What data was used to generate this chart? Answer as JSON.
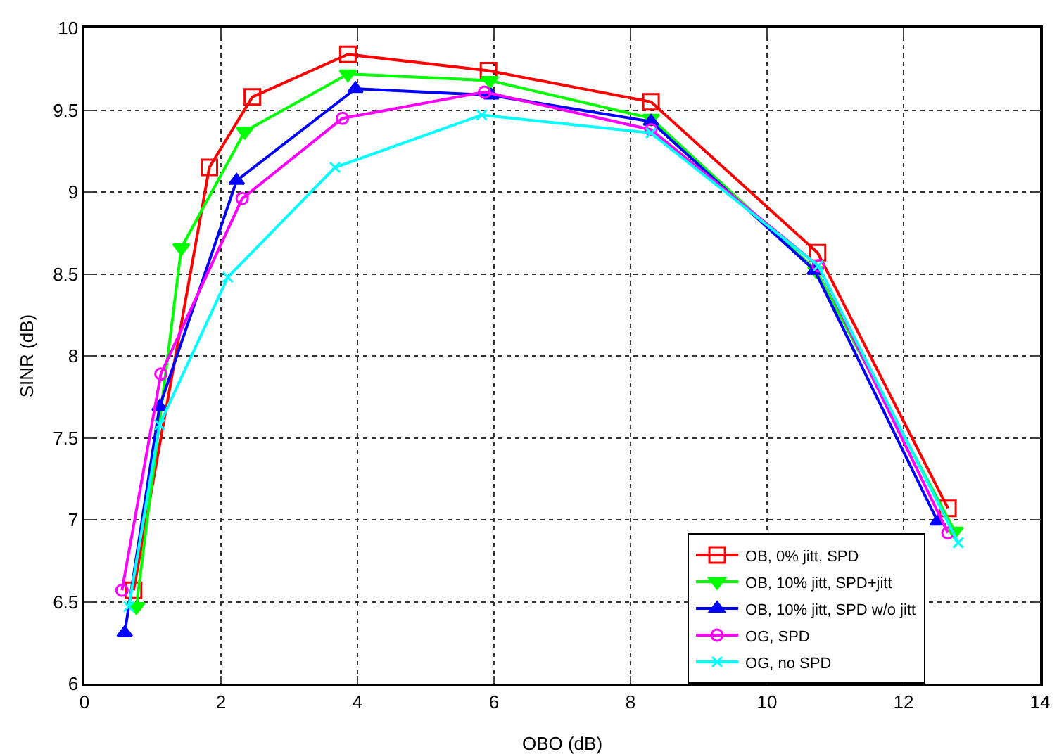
{
  "chart_data": {
    "type": "line",
    "xlabel": "OBO (dB)",
    "ylabel": "SINR (dB)",
    "xlim": [
      0,
      14
    ],
    "ylim": [
      6,
      10
    ],
    "xticks": [
      0,
      2,
      4,
      6,
      8,
      10,
      12,
      14
    ],
    "yticks": [
      6,
      6.5,
      7,
      7.5,
      8,
      8.5,
      9,
      9.5,
      10
    ],
    "grid": true,
    "legend": "bottom right",
    "line_style": "solid",
    "series": [
      {
        "name": "OB, 0% jitt, SPD",
        "color": "#ff0000",
        "marker": "square",
        "x": [
          0.72,
          1.83,
          2.46,
          3.86,
          5.92,
          8.3,
          10.74,
          12.65
        ],
        "values": [
          6.57,
          9.15,
          9.58,
          9.84,
          9.74,
          9.55,
          8.63,
          7.07
        ]
      },
      {
        "name": "OB, 10% jitt, SPD+jitt",
        "color": "#00ff00",
        "marker": "triangle-down",
        "x": [
          0.76,
          1.42,
          2.35,
          3.86,
          5.94,
          8.3,
          10.72,
          12.75
        ],
        "values": [
          6.47,
          8.66,
          9.37,
          9.72,
          9.68,
          9.45,
          8.52,
          6.93
        ]
      },
      {
        "name": "OB, 10% jitt, SPD w/o jitt",
        "color": "#0000ff",
        "marker": "triangle",
        "x": [
          0.59,
          1.1,
          2.23,
          3.97,
          5.96,
          8.3,
          10.7,
          12.5
        ],
        "values": [
          6.31,
          7.69,
          9.07,
          9.63,
          9.59,
          9.43,
          8.52,
          6.99
        ]
      },
      {
        "name": "OG, SPD",
        "color": "#ff00ff",
        "marker": "circle",
        "x": [
          0.55,
          1.12,
          2.31,
          3.78,
          5.86,
          8.3,
          10.75,
          12.65
        ],
        "values": [
          6.57,
          7.89,
          8.96,
          9.45,
          9.61,
          9.38,
          8.55,
          6.92
        ]
      },
      {
        "name": "OG, no SPD",
        "color": "#00ffff",
        "marker": "cross",
        "x": [
          0.65,
          1.1,
          2.1,
          3.67,
          5.82,
          8.3,
          10.75,
          12.8
        ],
        "values": [
          6.47,
          7.58,
          8.48,
          9.15,
          9.47,
          9.36,
          8.55,
          6.86
        ]
      }
    ]
  }
}
